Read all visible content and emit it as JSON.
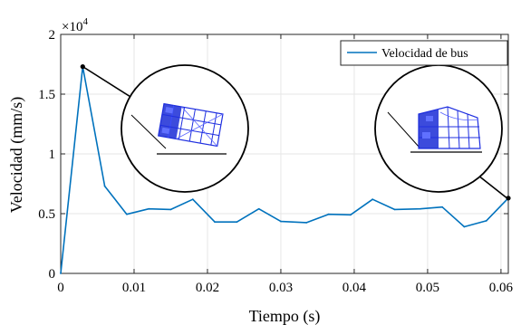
{
  "chart_data": {
    "type": "line",
    "xlabel": "Tiempo (s)",
    "ylabel": "Velocidad (mm/s)",
    "y_multiplier_label": "×10",
    "y_multiplier_exponent": "4",
    "xlim": [
      0,
      0.061
    ],
    "ylim": [
      0,
      20000
    ],
    "x_ticks": [
      0,
      0.01,
      0.02,
      0.03,
      0.04,
      0.05,
      0.06
    ],
    "x_tick_labels": [
      "0",
      "0.01",
      "0.02",
      "0.03",
      "0.04",
      "0.05",
      "0.06"
    ],
    "y_ticks": [
      0,
      5000,
      10000,
      15000,
      20000
    ],
    "y_tick_labels": [
      "0",
      "0.5",
      "1",
      "1.5",
      "2"
    ],
    "grid": true,
    "legend_position": "top-right",
    "series": [
      {
        "name": "Velocidad de bus",
        "color": "#0072BD",
        "x": [
          0,
          0.003,
          0.006,
          0.009,
          0.012,
          0.015,
          0.018,
          0.021,
          0.024,
          0.027,
          0.03,
          0.0335,
          0.0365,
          0.0395,
          0.0425,
          0.0455,
          0.049,
          0.052,
          0.055,
          0.058,
          0.061
        ],
        "y": [
          0,
          17300,
          7300,
          4950,
          5400,
          5350,
          6200,
          4300,
          4300,
          5400,
          4350,
          4250,
          4950,
          4900,
          6200,
          5350,
          5400,
          5550,
          3900,
          4400,
          6300
        ]
      }
    ],
    "callouts": [
      {
        "name": "bus-impact-inset",
        "point": [
          0.003,
          17300
        ]
      },
      {
        "name": "bus-final-inset",
        "point": [
          0.061,
          6300
        ]
      }
    ]
  }
}
